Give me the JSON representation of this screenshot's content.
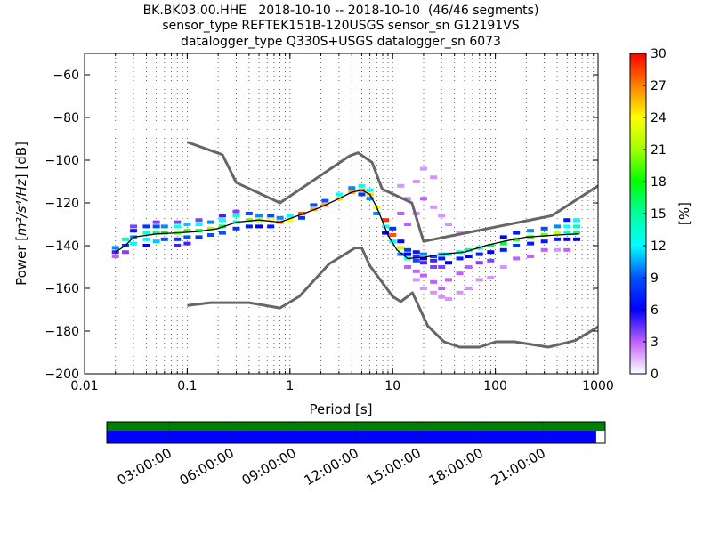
{
  "chart_data": [
    {
      "type": "heatmap",
      "title_lines": [
        "BK.BK03.00.HHE   2018-10-10 -- 2018-10-10  (46/46 segments)",
        "sensor_type REFTEK151B-120USGS sensor_sn G12191VS",
        "datalogger_type Q330S+USGS datalogger_sn 6073"
      ],
      "xlabel": "Period [s]",
      "ylabel_prefix": "Power [",
      "ylabel_unit": "m²/s⁴/Hz",
      "ylabel_suffix": "] [dB]",
      "xscale": "log",
      "xlim": [
        0.01,
        1000
      ],
      "ylim": [
        -200,
        -50
      ],
      "x_ticks": [
        {
          "value": 0.01,
          "label": "0.01"
        },
        {
          "value": 0.1,
          "label": "0.1"
        },
        {
          "value": 1,
          "label": "1"
        },
        {
          "value": 10,
          "label": "10"
        },
        {
          "value": 100,
          "label": "100"
        },
        {
          "value": 1000,
          "label": "1000"
        }
      ],
      "y_ticks": [
        {
          "value": -60,
          "label": "−60"
        },
        {
          "value": -80,
          "label": "−80"
        },
        {
          "value": -100,
          "label": "−100"
        },
        {
          "value": -120,
          "label": "−120"
        },
        {
          "value": -140,
          "label": "−140"
        },
        {
          "value": -160,
          "label": "−160"
        },
        {
          "value": -180,
          "label": "−180"
        },
        {
          "value": -200,
          "label": "−200"
        }
      ],
      "grid": "vertical dotted at minor decades",
      "noise_model_high": {
        "x": [
          0.1,
          0.22,
          0.3,
          0.8,
          3.8,
          4.6,
          6.3,
          7.9,
          15.4,
          20,
          354,
          1000
        ],
        "y": [
          -91.5,
          -97.4,
          -110.5,
          -120,
          -98,
          -96.5,
          -101,
          -113.5,
          -120,
          -138,
          -126,
          -112
        ]
      },
      "noise_model_low": {
        "x": [
          0.1,
          0.17,
          0.4,
          0.8,
          1.24,
          2.4,
          4.3,
          5.0,
          6.0,
          10,
          12,
          15.6,
          21.9,
          31.6,
          45,
          70,
          101,
          154,
          328,
          600,
          1000
        ],
        "y": [
          -168,
          -166.7,
          -166.7,
          -169.2,
          -163.7,
          -148.6,
          -141.1,
          -141.1,
          -149.4,
          -163.8,
          -166.2,
          -162.1,
          -177.5,
          -185,
          -187.5,
          -187.5,
          -185,
          -185,
          -187.5,
          -184.4,
          -178
        ]
      },
      "mode_curve": {
        "x": [
          0.02,
          0.025,
          0.03,
          0.05,
          0.08,
          0.12,
          0.2,
          0.3,
          0.5,
          0.8,
          1.2,
          2,
          3,
          4,
          5,
          6,
          7,
          9,
          11,
          14,
          20,
          30,
          50,
          80,
          120,
          200,
          400,
          650
        ],
        "y": [
          -143,
          -140,
          -136,
          -134.5,
          -134,
          -133.5,
          -132,
          -129,
          -128,
          -129,
          -126,
          -122,
          -118,
          -115,
          -114,
          -116,
          -122,
          -135,
          -142,
          -146,
          -145.5,
          -144,
          -143,
          -140,
          -138,
          -136,
          -135,
          -134.5
        ]
      },
      "density_cells": [
        [
          0.02,
          -143,
          5
        ],
        [
          0.02,
          -141,
          10
        ],
        [
          0.02,
          -145,
          3
        ],
        [
          0.025,
          -140,
          8
        ],
        [
          0.025,
          -137,
          14
        ],
        [
          0.025,
          -143,
          4
        ],
        [
          0.03,
          -136,
          10
        ],
        [
          0.03,
          -133,
          7
        ],
        [
          0.03,
          -131,
          4
        ],
        [
          0.03,
          -139,
          12
        ],
        [
          0.04,
          -134,
          13
        ],
        [
          0.04,
          -131,
          8
        ],
        [
          0.04,
          -137,
          12
        ],
        [
          0.04,
          -140,
          6
        ],
        [
          0.05,
          -134,
          16
        ],
        [
          0.05,
          -131,
          9
        ],
        [
          0.05,
          -138,
          11
        ],
        [
          0.05,
          -129,
          4
        ],
        [
          0.06,
          -134,
          18
        ],
        [
          0.06,
          -137,
          9
        ],
        [
          0.06,
          -131,
          10
        ],
        [
          0.08,
          -134,
          20
        ],
        [
          0.08,
          -131,
          12
        ],
        [
          0.08,
          -137,
          8
        ],
        [
          0.08,
          -140,
          5
        ],
        [
          0.08,
          -129,
          4
        ],
        [
          0.1,
          -133,
          19
        ],
        [
          0.1,
          -130,
          11
        ],
        [
          0.1,
          -136,
          9
        ],
        [
          0.1,
          -139,
          5
        ],
        [
          0.13,
          -133,
          17
        ],
        [
          0.13,
          -130,
          12
        ],
        [
          0.13,
          -136,
          8
        ],
        [
          0.13,
          -128,
          4
        ],
        [
          0.17,
          -132,
          21
        ],
        [
          0.17,
          -129,
          10
        ],
        [
          0.17,
          -135,
          9
        ],
        [
          0.22,
          -131,
          17
        ],
        [
          0.22,
          -128,
          12
        ],
        [
          0.22,
          -134,
          9
        ],
        [
          0.22,
          -126,
          5
        ],
        [
          0.3,
          -129,
          14
        ],
        [
          0.3,
          -126,
          13
        ],
        [
          0.3,
          -132,
          8
        ],
        [
          0.3,
          -124,
          4
        ],
        [
          0.4,
          -128,
          20
        ],
        [
          0.4,
          -125,
          9
        ],
        [
          0.4,
          -131,
          7
        ],
        [
          0.5,
          -128,
          22
        ],
        [
          0.5,
          -126,
          10
        ],
        [
          0.5,
          -131,
          6
        ],
        [
          0.65,
          -128,
          24
        ],
        [
          0.65,
          -131,
          7
        ],
        [
          0.65,
          -126,
          9
        ],
        [
          0.8,
          -129,
          27
        ],
        [
          0.8,
          -127,
          10
        ],
        [
          1.0,
          -128,
          24
        ],
        [
          1.0,
          -126,
          12
        ],
        [
          1.3,
          -125,
          28
        ],
        [
          1.3,
          -127,
          8
        ],
        [
          1.7,
          -123,
          26
        ],
        [
          1.7,
          -121,
          9
        ],
        [
          2.2,
          -121,
          27
        ],
        [
          2.2,
          -119,
          9
        ],
        [
          3.0,
          -118,
          25
        ],
        [
          3.0,
          -116,
          12
        ],
        [
          4.0,
          -115,
          26
        ],
        [
          4.0,
          -113,
          10
        ],
        [
          5.0,
          -114,
          27
        ],
        [
          5.0,
          -112,
          12
        ],
        [
          5.0,
          -116,
          8
        ],
        [
          6.0,
          -116,
          25
        ],
        [
          6.0,
          -118,
          10
        ],
        [
          6.0,
          -114,
          12
        ],
        [
          7.0,
          -122,
          24
        ],
        [
          7.0,
          -125,
          10
        ],
        [
          8.5,
          -128,
          29
        ],
        [
          8.5,
          -131,
          12
        ],
        [
          8.5,
          -134,
          6
        ],
        [
          10,
          -135,
          28
        ],
        [
          10,
          -138,
          12
        ],
        [
          10,
          -132,
          8
        ],
        [
          12,
          -141,
          22
        ],
        [
          12,
          -144,
          10
        ],
        [
          12,
          -138,
          6
        ],
        [
          12,
          -125,
          3
        ],
        [
          12,
          -112,
          2
        ],
        [
          14,
          -144,
          6
        ],
        [
          14,
          -146,
          12
        ],
        [
          14,
          -142,
          8
        ],
        [
          14,
          -150,
          3
        ],
        [
          14,
          -118,
          2
        ],
        [
          14,
          -130,
          3
        ],
        [
          17,
          -145,
          5
        ],
        [
          17,
          -147,
          9
        ],
        [
          17,
          -143,
          7
        ],
        [
          17,
          -152,
          3
        ],
        [
          17,
          -156,
          2
        ],
        [
          17,
          -125,
          2
        ],
        [
          17,
          -110,
          2
        ],
        [
          20,
          -146,
          6
        ],
        [
          20,
          -144,
          10
        ],
        [
          20,
          -148,
          5
        ],
        [
          20,
          -154,
          3
        ],
        [
          20,
          -160,
          2
        ],
        [
          20,
          -104,
          2
        ],
        [
          20,
          -118,
          3
        ],
        [
          25,
          -145,
          9
        ],
        [
          25,
          -147,
          5
        ],
        [
          25,
          -150,
          4
        ],
        [
          25,
          -157,
          3
        ],
        [
          25,
          -162,
          2
        ],
        [
          25,
          -108,
          2
        ],
        [
          25,
          -122,
          2
        ],
        [
          30,
          -144,
          11
        ],
        [
          30,
          -146,
          7
        ],
        [
          30,
          -150,
          4
        ],
        [
          30,
          -160,
          3
        ],
        [
          30,
          -164,
          2
        ],
        [
          30,
          -126,
          2
        ],
        [
          35,
          -144,
          12
        ],
        [
          35,
          -148,
          6
        ],
        [
          35,
          -156,
          3
        ],
        [
          35,
          -165,
          2
        ],
        [
          35,
          -130,
          2
        ],
        [
          45,
          -143,
          13
        ],
        [
          45,
          -146,
          7
        ],
        [
          45,
          -153,
          3
        ],
        [
          45,
          -162,
          2
        ],
        [
          45,
          -134,
          2
        ],
        [
          55,
          -142,
          14
        ],
        [
          55,
          -145,
          6
        ],
        [
          55,
          -150,
          3
        ],
        [
          55,
          -160,
          2
        ],
        [
          70,
          -141,
          15
        ],
        [
          70,
          -144,
          7
        ],
        [
          70,
          -148,
          4
        ],
        [
          70,
          -156,
          2
        ],
        [
          90,
          -140,
          16
        ],
        [
          90,
          -143,
          6
        ],
        [
          90,
          -147,
          4
        ],
        [
          90,
          -155,
          2
        ],
        [
          120,
          -139,
          17
        ],
        [
          120,
          -142,
          7
        ],
        [
          120,
          -136,
          6
        ],
        [
          120,
          -150,
          2
        ],
        [
          160,
          -137,
          18
        ],
        [
          160,
          -140,
          8
        ],
        [
          160,
          -134,
          7
        ],
        [
          160,
          -146,
          3
        ],
        [
          220,
          -136,
          19
        ],
        [
          220,
          -133,
          10
        ],
        [
          220,
          -139,
          7
        ],
        [
          220,
          -145,
          3
        ],
        [
          300,
          -135,
          20
        ],
        [
          300,
          -132,
          9
        ],
        [
          300,
          -138,
          7
        ],
        [
          300,
          -142,
          3
        ],
        [
          400,
          -134,
          22
        ],
        [
          400,
          -131,
          10
        ],
        [
          400,
          -137,
          7
        ],
        [
          400,
          -142,
          2
        ],
        [
          500,
          -134,
          14
        ],
        [
          500,
          -131,
          12
        ],
        [
          500,
          -128,
          7
        ],
        [
          500,
          -137,
          6
        ],
        [
          500,
          -142,
          3
        ],
        [
          620,
          -134,
          16
        ],
        [
          620,
          -131,
          14
        ],
        [
          620,
          -128,
          12
        ],
        [
          620,
          -137,
          6
        ]
      ],
      "colorbar": {
        "label": "[%]",
        "range": [
          0,
          30
        ],
        "ticks": [
          "0",
          "3",
          "6",
          "9",
          "12",
          "15",
          "18",
          "21",
          "24",
          "27",
          "30"
        ],
        "colormap": "pqlx"
      }
    },
    {
      "type": "timeline",
      "data_coverage_fraction": 1.0,
      "gap_free_fraction": 0.982,
      "colors": {
        "coverage": "#008000",
        "gap_free": "#0000ff"
      },
      "time_ticks": [
        "03:00:00",
        "06:00:00",
        "09:00:00",
        "12:00:00",
        "15:00:00",
        "18:00:00",
        "21:00:00"
      ]
    }
  ]
}
